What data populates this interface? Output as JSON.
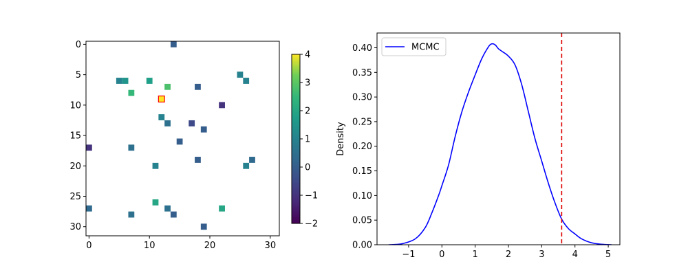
{
  "chart_data": [
    {
      "type": "heatmap",
      "title": "",
      "xlabel": "",
      "ylabel": "",
      "grid_size": 32,
      "xlim": [
        -0.5,
        31.5
      ],
      "ylim": [
        31.5,
        -0.5
      ],
      "xticks": [
        0,
        10,
        20,
        30
      ],
      "yticks": [
        0,
        5,
        10,
        15,
        20,
        25,
        30
      ],
      "colormap": "viridis",
      "colorbar": {
        "min": -2,
        "max": 4,
        "ticks": [
          -2,
          -1,
          0,
          1,
          2,
          3,
          4
        ],
        "tick_labels": [
          "−2",
          "−1",
          "0",
          "1",
          "2",
          "3",
          "4"
        ]
      },
      "cells": [
        {
          "x": 14,
          "y": 0,
          "value": 0.0
        },
        {
          "x": 25,
          "y": 5,
          "value": 1.0
        },
        {
          "x": 5,
          "y": 6,
          "value": 1.0
        },
        {
          "x": 6,
          "y": 6,
          "value": 1.5
        },
        {
          "x": 10,
          "y": 6,
          "value": 1.8
        },
        {
          "x": 26,
          "y": 6,
          "value": 1.0
        },
        {
          "x": 13,
          "y": 7,
          "value": 2.8
        },
        {
          "x": 18,
          "y": 7,
          "value": 0.0
        },
        {
          "x": 7,
          "y": 8,
          "value": 2.5
        },
        {
          "x": 12,
          "y": 9,
          "value": 4.0,
          "highlight": true
        },
        {
          "x": 22,
          "y": 10,
          "value": -1.0
        },
        {
          "x": 12,
          "y": 12,
          "value": 1.0
        },
        {
          "x": 13,
          "y": 13,
          "value": 0.5
        },
        {
          "x": 17,
          "y": 13,
          "value": -0.5
        },
        {
          "x": 19,
          "y": 14,
          "value": 0.0
        },
        {
          "x": 15,
          "y": 16,
          "value": 0.0
        },
        {
          "x": 0,
          "y": 17,
          "value": -1.0
        },
        {
          "x": 7,
          "y": 17,
          "value": 0.5
        },
        {
          "x": 18,
          "y": 19,
          "value": 0.0
        },
        {
          "x": 27,
          "y": 19,
          "value": 0.3
        },
        {
          "x": 11,
          "y": 20,
          "value": 1.0
        },
        {
          "x": 26,
          "y": 20,
          "value": 1.0
        },
        {
          "x": 11,
          "y": 26,
          "value": 2.0
        },
        {
          "x": 0,
          "y": 27,
          "value": 0.3
        },
        {
          "x": 13,
          "y": 27,
          "value": 0.5
        },
        {
          "x": 22,
          "y": 27,
          "value": 2.0
        },
        {
          "x": 7,
          "y": 28,
          "value": 0.5
        },
        {
          "x": 14,
          "y": 28,
          "value": 0.0
        },
        {
          "x": 19,
          "y": 30,
          "value": 0.0
        }
      ],
      "highlight_color": "#ff0000"
    },
    {
      "type": "line",
      "title": "",
      "xlabel": "",
      "ylabel": "Density",
      "xlim": [
        -1.95,
        5.35
      ],
      "ylim": [
        0,
        0.43
      ],
      "xticks": [
        -1,
        0,
        1,
        2,
        3,
        4,
        5
      ],
      "xtick_labels": [
        "−1",
        "0",
        "1",
        "2",
        "3",
        "4",
        "5"
      ],
      "yticks": [
        0.0,
        0.05,
        0.1,
        0.15,
        0.2,
        0.25,
        0.3,
        0.35,
        0.4
      ],
      "ytick_labels": [
        "0.00",
        "0.05",
        "0.10",
        "0.15",
        "0.20",
        "0.25",
        "0.30",
        "0.35",
        "0.40"
      ],
      "legend": {
        "position": "upper-left",
        "entries": [
          "MCMC"
        ]
      },
      "series": [
        {
          "name": "MCMC",
          "color": "#0000ff",
          "x": [
            -1.6,
            -1.2,
            -0.8,
            -0.5,
            -0.3,
            -0.1,
            0.0,
            0.2,
            0.4,
            0.6,
            0.8,
            1.0,
            1.2,
            1.4,
            1.5,
            1.6,
            1.7,
            1.8,
            2.0,
            2.2,
            2.4,
            2.6,
            2.8,
            3.0,
            3.2,
            3.4,
            3.6,
            3.8,
            4.0,
            4.2,
            4.5,
            4.8,
            5.1
          ],
          "y": [
            0.0,
            0.002,
            0.012,
            0.035,
            0.065,
            0.1,
            0.12,
            0.162,
            0.22,
            0.27,
            0.31,
            0.345,
            0.378,
            0.402,
            0.408,
            0.406,
            0.398,
            0.393,
            0.383,
            0.365,
            0.325,
            0.27,
            0.215,
            0.17,
            0.125,
            0.085,
            0.052,
            0.033,
            0.022,
            0.012,
            0.004,
            0.001,
            0.0
          ]
        }
      ],
      "vline": {
        "x": 3.6,
        "color": "#dd0000",
        "style": "dashed"
      }
    }
  ]
}
